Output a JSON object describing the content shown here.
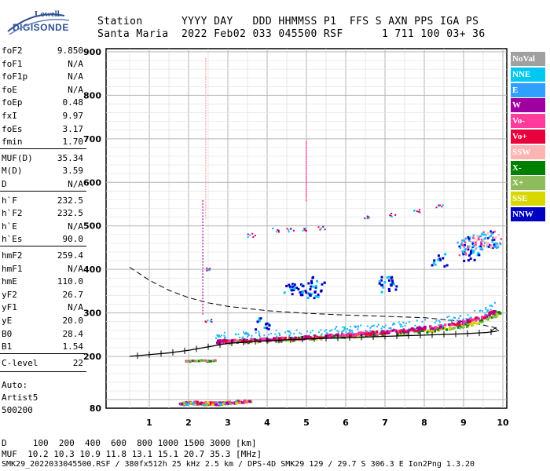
{
  "logo": {
    "line1": "Lowell",
    "line2": "DIGISONDE"
  },
  "header": {
    "line1": "Station      YYYY DAY   DDD HHMMSS P1  FFS S AXN PPS IGA PS",
    "line2": "Santa Maria  2022 Feb02 033 045500 RSF      1 711 100 03+ 36"
  },
  "params_group1": [
    {
      "name": "foF2",
      "value": "9.850"
    },
    {
      "name": "foF1",
      "value": "N/A"
    },
    {
      "name": "foF1p",
      "value": "N/A"
    },
    {
      "name": "foE",
      "value": "N/A"
    },
    {
      "name": "foEp",
      "value": "0.48"
    },
    {
      "name": "fxI",
      "value": "9.97"
    },
    {
      "name": "foEs",
      "value": "3.17"
    },
    {
      "name": "fmin",
      "value": "1.70"
    }
  ],
  "params_group2": [
    {
      "name": "MUF(D)",
      "value": "35.34"
    },
    {
      "name": "M(D)",
      "value": "3.59"
    },
    {
      "name": "D",
      "value": "N/A"
    }
  ],
  "params_group3": [
    {
      "name": "h`F",
      "value": "232.5"
    },
    {
      "name": "h`F2",
      "value": "232.5"
    },
    {
      "name": "h`E",
      "value": "N/A"
    },
    {
      "name": "h`Es",
      "value": "90.0"
    }
  ],
  "params_group4": [
    {
      "name": "hmF2",
      "value": "259.4"
    },
    {
      "name": "hmF1",
      "value": "N/A"
    },
    {
      "name": "hmE",
      "value": "110.0"
    },
    {
      "name": "yF2",
      "value": "26.7"
    },
    {
      "name": "yF1",
      "value": "N/A"
    },
    {
      "name": "yE",
      "value": "20.0"
    },
    {
      "name": "B0",
      "value": "28.4"
    },
    {
      "name": "B1",
      "value": "1.54"
    }
  ],
  "params_group5": [
    {
      "name": "C-level",
      "value": "22"
    }
  ],
  "auto_info": {
    "line1": "Auto:",
    "line2": "Artist5",
    "line3": "500200"
  },
  "legend": [
    {
      "label": "NoVal",
      "color": "#a0a0a0"
    },
    {
      "label": "NNE",
      "color": "#00c8f0"
    },
    {
      "label": "E",
      "color": "#30a0ff"
    },
    {
      "label": "W",
      "color": "#a000a0"
    },
    {
      "label": "Vo-",
      "color": "#ff3c9c"
    },
    {
      "label": "Vo+",
      "color": "#e8003c"
    },
    {
      "label": "SSW",
      "color": "#ffb4b4"
    },
    {
      "label": "X-",
      "color": "#008000"
    },
    {
      "label": "X+",
      "color": "#8cbc5c"
    },
    {
      "label": "SSE",
      "color": "#d8d800"
    },
    {
      "label": "NNW",
      "color": "#0000c0"
    }
  ],
  "bottom": {
    "d_line": "D     100  200  400  600  800 1000 1500 3000 [km]",
    "muf_line": "MUF  10.2 10.3 10.9 11.8 13.1 15.1 20.7 35.3 [MHz]",
    "file_line": "SMK29_2022033045500.RSF / 380fx512h 25 kHz 2.5 km / DPS-4D SMK29 129 / 29.7 S 306.3 E Ion2Png 1.3.20"
  },
  "chart_data": {
    "type": "scatter",
    "x_ticks": [
      "1",
      "2",
      "3",
      "4",
      "5",
      "6",
      "7",
      "8",
      "9",
      "10"
    ],
    "y_ticks": [
      "80",
      "200",
      "300",
      "400",
      "500",
      "600",
      "700",
      "800",
      "900"
    ],
    "xlim": [
      0.5,
      10
    ],
    "ylim": [
      80,
      900
    ],
    "grid": true,
    "profile_curve": [
      [
        0.5,
        200
      ],
      [
        1.0,
        204
      ],
      [
        1.5,
        208
      ],
      [
        2.0,
        214
      ],
      [
        2.5,
        222
      ],
      [
        3.0,
        230
      ],
      [
        4.0,
        236
      ],
      [
        5.0,
        240
      ],
      [
        6.0,
        243
      ],
      [
        7.0,
        246
      ],
      [
        8.0,
        249
      ],
      [
        9.0,
        252
      ],
      [
        9.6,
        255
      ],
      [
        9.85,
        258
      ]
    ],
    "dashed_curve": [
      [
        0.5,
        405
      ],
      [
        1.0,
        375
      ],
      [
        1.5,
        352
      ],
      [
        2.0,
        335
      ],
      [
        2.5,
        323
      ],
      [
        3.0,
        315
      ],
      [
        4.0,
        305
      ],
      [
        5.0,
        299
      ],
      [
        6.0,
        295
      ],
      [
        7.0,
        292
      ],
      [
        8.0,
        289
      ],
      [
        9.0,
        280
      ],
      [
        9.5,
        272
      ],
      [
        9.85,
        265
      ]
    ],
    "trace_o": [
      [
        2.7,
        233
      ],
      [
        3.0,
        234
      ],
      [
        3.5,
        236
      ],
      [
        4.0,
        238
      ],
      [
        4.5,
        240
      ],
      [
        5.0,
        243
      ],
      [
        5.5,
        246
      ],
      [
        6.0,
        249
      ],
      [
        6.5,
        252
      ],
      [
        7.0,
        255
      ],
      [
        7.5,
        259
      ],
      [
        8.0,
        264
      ],
      [
        8.5,
        270
      ],
      [
        9.0,
        278
      ],
      [
        9.5,
        290
      ],
      [
        9.85,
        305
      ]
    ],
    "trace_x": [
      [
        3.0,
        232
      ],
      [
        4.0,
        236
      ],
      [
        5.0,
        241
      ],
      [
        6.0,
        246
      ],
      [
        7.0,
        251
      ],
      [
        8.0,
        258
      ],
      [
        8.5,
        263
      ],
      [
        9.0,
        270
      ],
      [
        9.5,
        282
      ],
      [
        9.95,
        300
      ]
    ],
    "es_layer": [
      [
        1.8,
        90
      ],
      [
        2.0,
        91
      ],
      [
        2.2,
        92
      ],
      [
        2.4,
        90
      ],
      [
        2.6,
        91
      ],
      [
        2.8,
        90
      ],
      [
        3.0,
        92
      ],
      [
        3.3,
        94
      ],
      [
        3.6,
        95
      ]
    ],
    "es_high": [
      [
        1.9,
        188
      ],
      [
        2.1,
        189
      ],
      [
        2.3,
        190
      ],
      [
        2.5,
        189
      ],
      [
        2.7,
        190
      ]
    ],
    "oblique_upper": [
      [
        8.9,
        450
      ],
      [
        9.1,
        455
      ],
      [
        9.3,
        460
      ],
      [
        9.5,
        465
      ],
      [
        9.7,
        468
      ],
      [
        9.9,
        470
      ]
    ],
    "scattered_nnw": [
      [
        4.6,
        360
      ],
      [
        4.8,
        350
      ],
      [
        5.0,
        355
      ],
      [
        5.2,
        345
      ],
      [
        5.3,
        370
      ],
      [
        7.1,
        360
      ],
      [
        7.0,
        370
      ],
      [
        3.9,
        275
      ],
      [
        9.2,
        430
      ],
      [
        8.4,
        420
      ]
    ],
    "scattered_misc": [
      [
        4.2,
        490
      ],
      [
        4.6,
        490
      ],
      [
        5.0,
        492
      ],
      [
        5.4,
        495
      ],
      [
        6.5,
        520
      ],
      [
        7.2,
        525
      ],
      [
        7.8,
        535
      ],
      [
        8.4,
        545
      ],
      [
        3.6,
        478
      ],
      [
        2.5,
        282
      ],
      [
        2.5,
        400
      ]
    ]
  }
}
